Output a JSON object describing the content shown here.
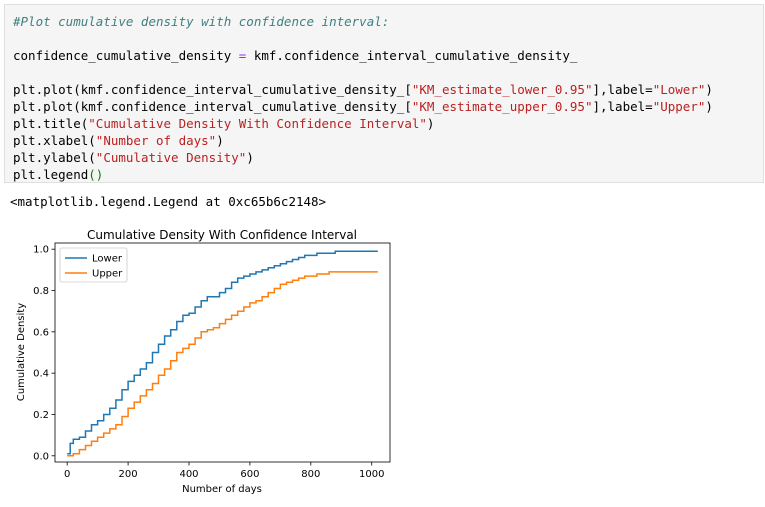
{
  "code": {
    "line1": "#Plot cumulative density with confidence interval:",
    "line2_a": "confidence_cumulative_density ",
    "line2_eq": "=",
    "line2_b": " kmf.confidence_interval_cumulative_density_",
    "line3_a": "plt.plot(kmf.confidence_interval_cumulative_density_[",
    "line3_str": "\"KM_estimate_lower_0.95\"",
    "line3_b": "],label=",
    "line3_lbl": "\"Lower\"",
    "line3_c": ")",
    "line4_a": "plt.plot(kmf.confidence_interval_cumulative_density_[",
    "line4_str": "\"KM_estimate_upper_0.95\"",
    "line4_b": "],label=",
    "line4_lbl": "\"Upper\"",
    "line4_c": ")",
    "line5_a": "plt.title(",
    "line5_str": "\"Cumulative Density With Confidence Interval\"",
    "line5_c": ")",
    "line6_a": "plt.xlabel(",
    "line6_str": "\"Number of days\"",
    "line6_c": ")",
    "line7_a": "plt.ylabel(",
    "line7_str": "\"Cumulative Density\"",
    "line7_c": ")",
    "line8_a": "plt.legend",
    "line8_b": "()"
  },
  "output_text": "<matplotlib.legend.Legend at 0xc65b6c2148>",
  "chart_data": {
    "type": "line",
    "title": "Cumulative Density With Confidence Interval",
    "xlabel": "Number of days",
    "ylabel": "Cumulative Density",
    "xlim": [
      -40,
      1060
    ],
    "ylim": [
      -0.03,
      1.03
    ],
    "xticks": [
      0,
      200,
      400,
      600,
      800,
      1000
    ],
    "xtick_labels": [
      "0",
      "200",
      "400",
      "600",
      "800",
      "1000"
    ],
    "yticks": [
      0.0,
      0.2,
      0.4,
      0.6,
      0.8,
      1.0
    ],
    "ytick_labels": [
      "0.0",
      "0.2",
      "0.4",
      "0.6",
      "0.8",
      "1.0"
    ],
    "legend_position": "upper-left",
    "series": [
      {
        "name": "Lower",
        "color": "#1f77b4",
        "x": [
          0,
          10,
          20,
          40,
          60,
          80,
          100,
          120,
          140,
          160,
          180,
          200,
          220,
          240,
          260,
          280,
          300,
          320,
          340,
          360,
          380,
          400,
          420,
          440,
          460,
          480,
          500,
          520,
          540,
          560,
          580,
          600,
          620,
          640,
          660,
          680,
          700,
          720,
          740,
          760,
          780,
          800,
          820,
          840,
          860,
          880,
          900,
          920,
          960,
          1000,
          1020
        ],
        "y": [
          0.01,
          0.06,
          0.08,
          0.09,
          0.12,
          0.15,
          0.17,
          0.2,
          0.23,
          0.27,
          0.32,
          0.36,
          0.39,
          0.42,
          0.45,
          0.5,
          0.54,
          0.58,
          0.61,
          0.65,
          0.68,
          0.69,
          0.72,
          0.75,
          0.77,
          0.77,
          0.79,
          0.81,
          0.84,
          0.86,
          0.87,
          0.88,
          0.89,
          0.9,
          0.91,
          0.92,
          0.93,
          0.94,
          0.95,
          0.96,
          0.97,
          0.97,
          0.98,
          0.98,
          0.98,
          0.99,
          0.99,
          0.99,
          0.99,
          0.99,
          0.99
        ]
      },
      {
        "name": "Upper",
        "color": "#ff7f0e",
        "x": [
          0,
          20,
          40,
          60,
          80,
          100,
          120,
          140,
          160,
          180,
          200,
          220,
          240,
          260,
          280,
          300,
          320,
          340,
          360,
          380,
          400,
          420,
          440,
          460,
          480,
          500,
          520,
          540,
          560,
          580,
          600,
          620,
          640,
          660,
          680,
          700,
          720,
          740,
          760,
          780,
          800,
          820,
          840,
          860,
          880,
          900,
          920,
          960,
          1000,
          1020
        ],
        "y": [
          0.0,
          0.01,
          0.03,
          0.05,
          0.07,
          0.09,
          0.11,
          0.13,
          0.15,
          0.19,
          0.23,
          0.26,
          0.29,
          0.32,
          0.35,
          0.39,
          0.42,
          0.46,
          0.5,
          0.52,
          0.54,
          0.57,
          0.6,
          0.61,
          0.62,
          0.64,
          0.66,
          0.68,
          0.7,
          0.72,
          0.74,
          0.75,
          0.77,
          0.79,
          0.81,
          0.83,
          0.84,
          0.85,
          0.86,
          0.87,
          0.87,
          0.88,
          0.88,
          0.89,
          0.89,
          0.89,
          0.89,
          0.89,
          0.89,
          0.89
        ]
      }
    ]
  }
}
